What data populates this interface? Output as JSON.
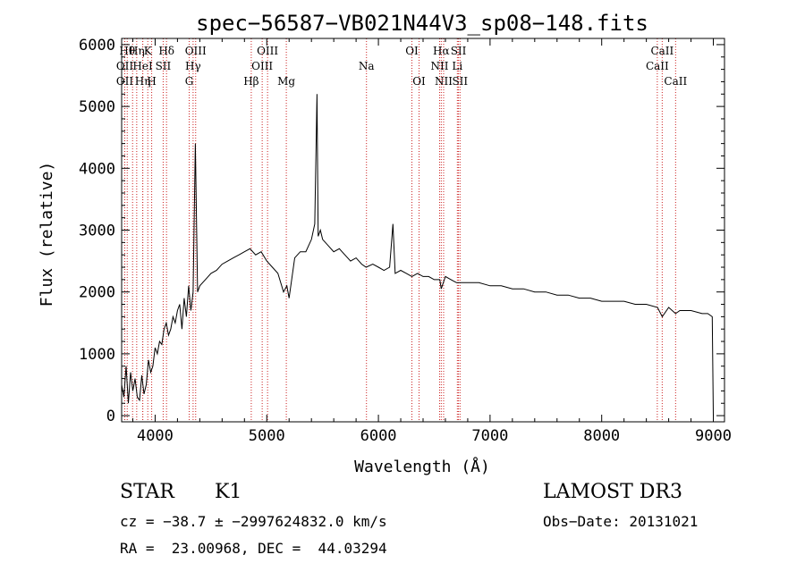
{
  "chart_data": {
    "type": "line",
    "title": "spec−56587−VB021N44V3_sp08−148.fits",
    "xlabel": "Wavelength (Å)",
    "ylabel": "Flux (relative)",
    "xlim": [
      3700,
      9100
    ],
    "ylim": [
      -100,
      6100
    ],
    "xticks": [
      4000,
      5000,
      6000,
      7000,
      8000,
      9000
    ],
    "yticks": [
      0,
      1000,
      2000,
      3000,
      4000,
      5000,
      6000
    ],
    "grid": false,
    "legend": "none",
    "colors": {
      "spectrum": "#000000",
      "lines": "#cc2222"
    },
    "series": [
      {
        "x": [
          3700,
          3720,
          3740,
          3760,
          3780,
          3800,
          3820,
          3840,
          3860,
          3880,
          3900,
          3920,
          3940,
          3960,
          3980,
          4000,
          4020,
          4040,
          4060,
          4080,
          4100,
          4120,
          4140,
          4160,
          4180,
          4200,
          4220,
          4240,
          4260,
          4280,
          4300,
          4320,
          4340,
          4360,
          4380,
          4400,
          4450,
          4500,
          4550,
          4600,
          4650,
          4700,
          4750,
          4800,
          4850,
          4900,
          4950,
          5000,
          5050,
          5100,
          5150,
          5180,
          5200,
          5250,
          5300,
          5350,
          5400,
          5430,
          5450,
          5460,
          5480,
          5500,
          5550,
          5600,
          5650,
          5700,
          5750,
          5800,
          5850,
          5890,
          5950,
          6000,
          6050,
          6100,
          6130,
          6150,
          6200,
          6250,
          6300,
          6350,
          6400,
          6450,
          6500,
          6550,
          6563,
          6600,
          6650,
          6700,
          6750,
          6800,
          6900,
          7000,
          7100,
          7200,
          7300,
          7400,
          7500,
          7600,
          7700,
          7800,
          7900,
          8000,
          8100,
          8200,
          8300,
          8400,
          8500,
          8542,
          8600,
          8662,
          8700,
          8800,
          8900,
          8950,
          8990,
          9000
        ],
        "y": [
          500,
          300,
          800,
          200,
          700,
          400,
          600,
          300,
          250,
          650,
          350,
          500,
          900,
          700,
          800,
          1100,
          1000,
          1200,
          1150,
          1400,
          1500,
          1300,
          1400,
          1600,
          1500,
          1700,
          1800,
          1400,
          1900,
          1600,
          2100,
          1700,
          2000,
          4400,
          2000,
          2100,
          2200,
          2300,
          2350,
          2450,
          2500,
          2550,
          2600,
          2650,
          2700,
          2600,
          2650,
          2500,
          2400,
          2300,
          2000,
          2100,
          1900,
          2550,
          2650,
          2650,
          2850,
          3100,
          5200,
          2900,
          3000,
          2850,
          2750,
          2650,
          2700,
          2600,
          2500,
          2550,
          2450,
          2400,
          2450,
          2400,
          2350,
          2400,
          3100,
          2300,
          2350,
          2300,
          2250,
          2300,
          2250,
          2250,
          2200,
          2200,
          2050,
          2250,
          2200,
          2150,
          2150,
          2150,
          2150,
          2100,
          2100,
          2050,
          2050,
          2000,
          2000,
          1950,
          1950,
          1900,
          1900,
          1850,
          1850,
          1850,
          1800,
          1800,
          1750,
          1600,
          1750,
          1650,
          1700,
          1700,
          1650,
          1650,
          1600,
          0
        ]
      }
    ],
    "lines": [
      {
        "wl": 3750,
        "row": 0,
        "label": "Hθ"
      },
      {
        "wl": 3728,
        "row": 1,
        "label": "OII"
      },
      {
        "wl": 3728,
        "row": 2,
        "label": "OII"
      },
      {
        "wl": 3798,
        "row": 2,
        "label": ""
      },
      {
        "wl": 3835,
        "row": 0,
        "label": "Hη"
      },
      {
        "wl": 3889,
        "row": 1,
        "label": "HeI"
      },
      {
        "wl": 3889,
        "row": 2,
        "label": "Hη"
      },
      {
        "wl": 3934,
        "row": 0,
        "label": "K"
      },
      {
        "wl": 3969,
        "row": 2,
        "label": "H"
      },
      {
        "wl": 4072,
        "row": 1,
        "label": "SII"
      },
      {
        "wl": 4102,
        "row": 0,
        "label": "Hδ"
      },
      {
        "wl": 4305,
        "row": 2,
        "label": "G"
      },
      {
        "wl": 4340,
        "row": 1,
        "label": "Hγ"
      },
      {
        "wl": 4363,
        "row": 0,
        "label": "OIII"
      },
      {
        "wl": 4861,
        "row": 2,
        "label": "Hβ"
      },
      {
        "wl": 4959,
        "row": 1,
        "label": "OIII"
      },
      {
        "wl": 5007,
        "row": 0,
        "label": "OIII"
      },
      {
        "wl": 5175,
        "row": 2,
        "label": "Mg"
      },
      {
        "wl": 5893,
        "row": 1,
        "label": "Na"
      },
      {
        "wl": 6300,
        "row": 0,
        "label": "OI"
      },
      {
        "wl": 6364,
        "row": 2,
        "label": "OI"
      },
      {
        "wl": 6548,
        "row": 1,
        "label": "NII"
      },
      {
        "wl": 6563,
        "row": 0,
        "label": "Hα"
      },
      {
        "wl": 6584,
        "row": 2,
        "label": "NII"
      },
      {
        "wl": 6707,
        "row": 1,
        "label": "Li"
      },
      {
        "wl": 6717,
        "row": 0,
        "label": "SII"
      },
      {
        "wl": 6731,
        "row": 2,
        "label": "SII"
      },
      {
        "wl": 8498,
        "row": 1,
        "label": "CaII"
      },
      {
        "wl": 8542,
        "row": 0,
        "label": "CaII"
      },
      {
        "wl": 8662,
        "row": 2,
        "label": "CaII"
      }
    ]
  },
  "info": {
    "object_type": "STAR",
    "subclass": "K1",
    "survey": "LAMOST DR3",
    "cz": "cz = −38.7 ± −2997624832.0 km/s",
    "obs_date": "Obs−Date: 20131021",
    "coords": "RA =  23.00968, DEC =  44.03294"
  }
}
